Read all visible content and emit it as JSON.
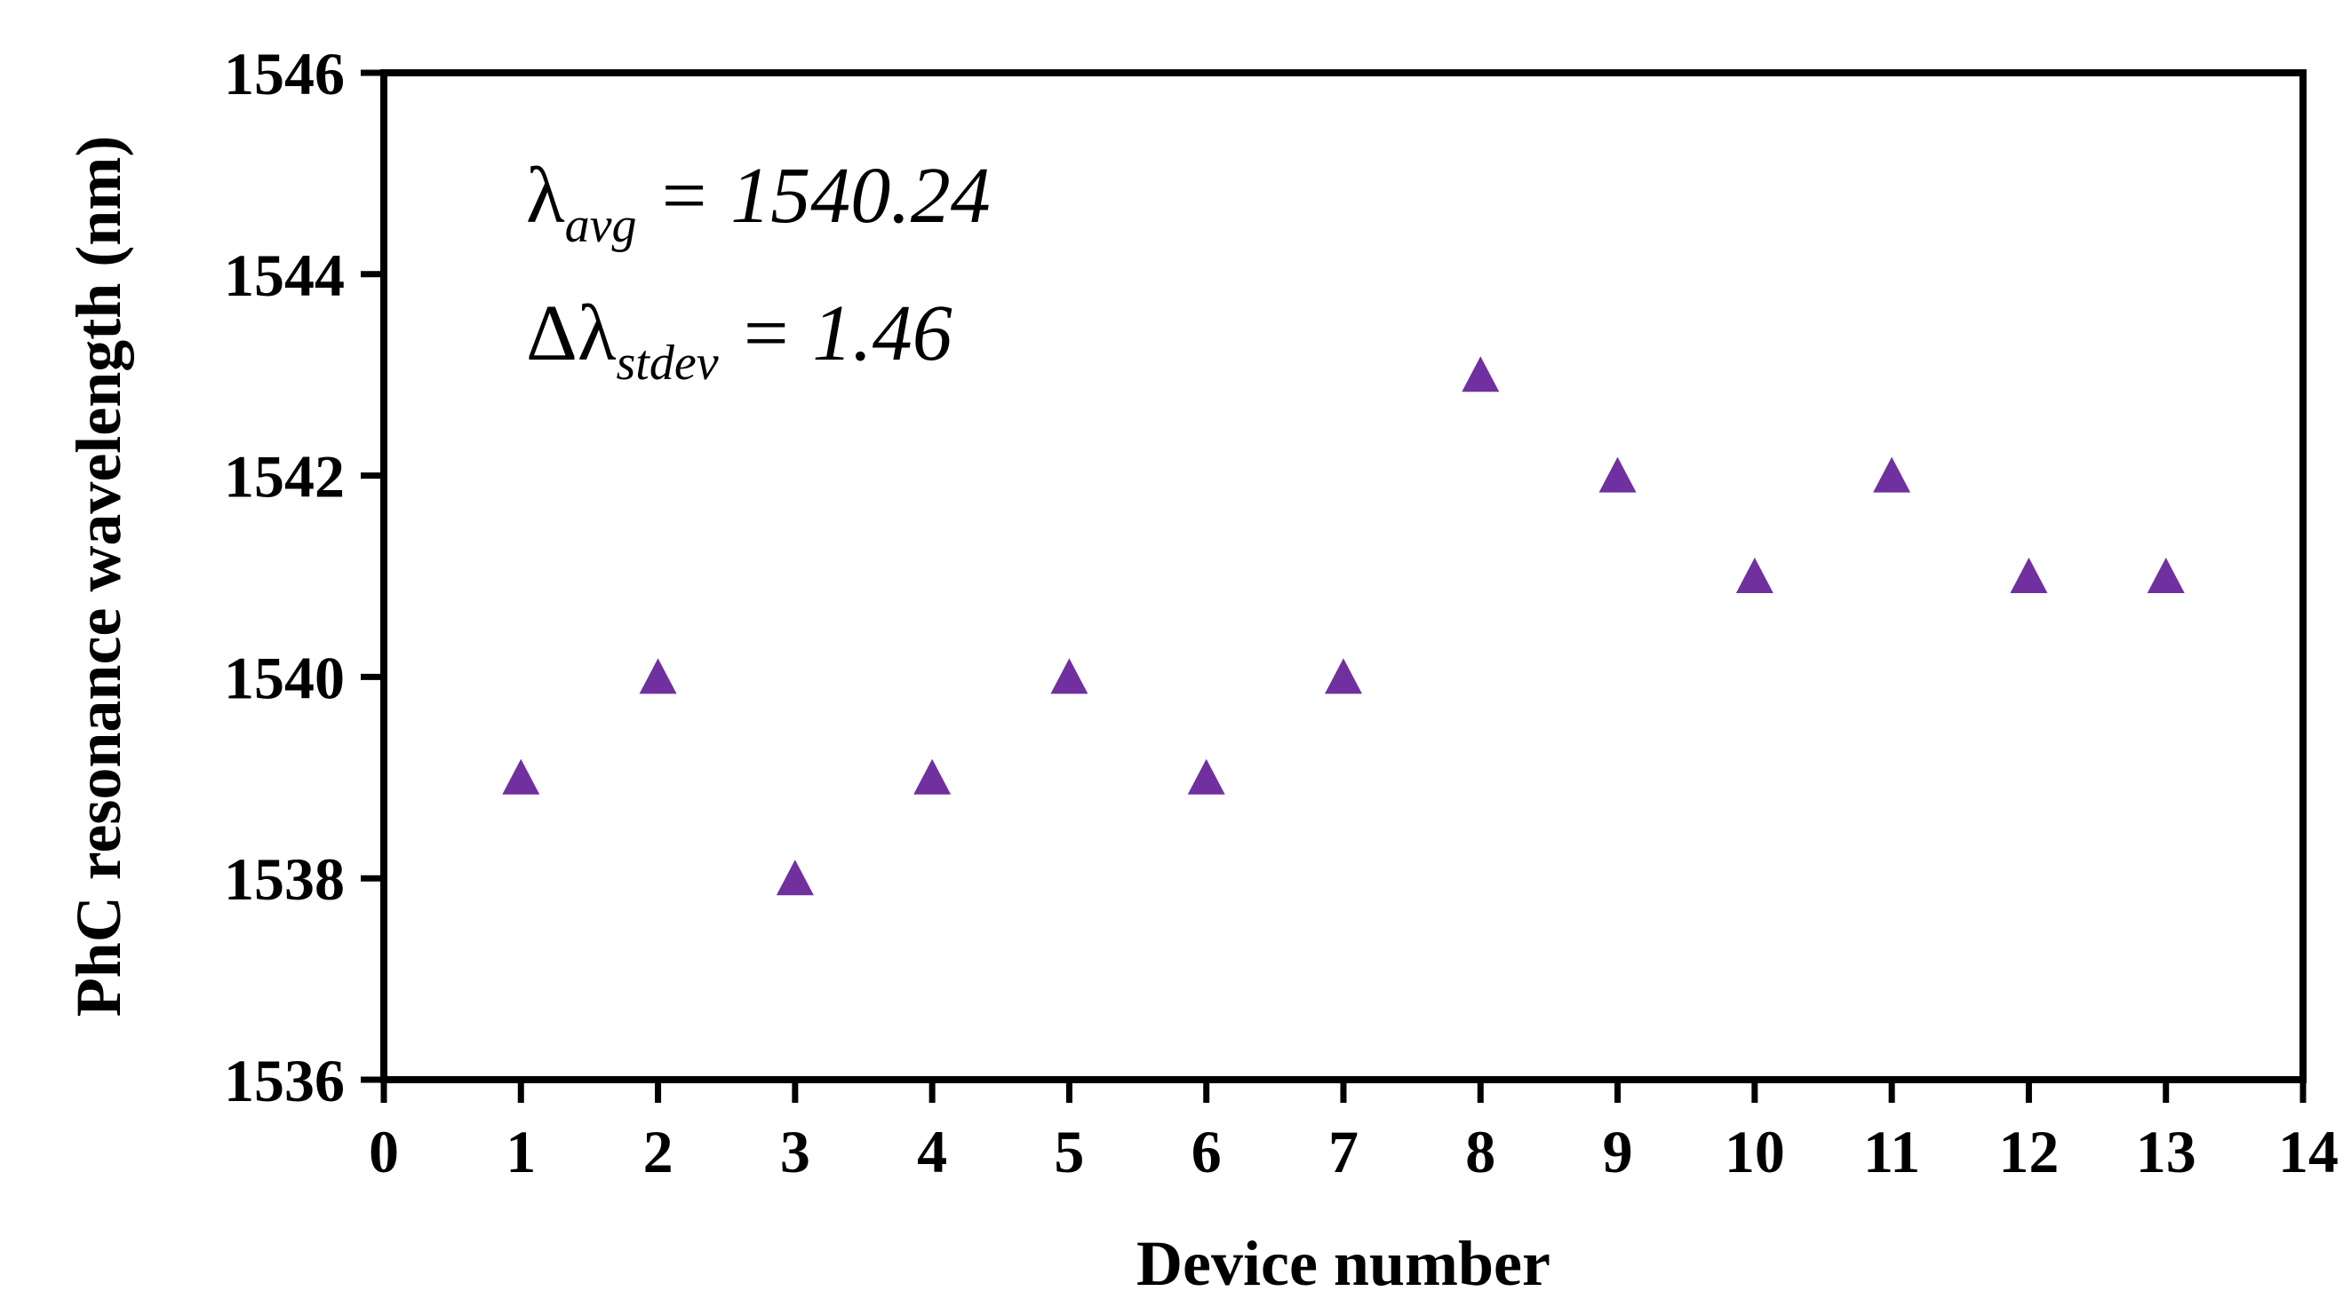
{
  "chart_data": {
    "type": "scatter",
    "xlabel": "Device number",
    "ylabel": "PhC resonance wavelength (nm)",
    "xlim": [
      0,
      14
    ],
    "ylim": [
      1536,
      1546
    ],
    "x_ticks": [
      0,
      1,
      2,
      3,
      4,
      5,
      6,
      7,
      8,
      9,
      10,
      11,
      12,
      13,
      14
    ],
    "y_ticks": [
      1536,
      1538,
      1540,
      1542,
      1544,
      1546
    ],
    "grid": false,
    "legend": "none",
    "marker": "triangle",
    "marker_color": "#7030A0",
    "series": [
      {
        "x": [
          1,
          2,
          3,
          4,
          5,
          6,
          7,
          8,
          9,
          10,
          11,
          12,
          13
        ],
        "y": [
          1539,
          1540,
          1538,
          1539,
          1540,
          1539,
          1540,
          1543,
          1542,
          1541,
          1542,
          1541,
          1541
        ]
      }
    ],
    "annotations": {
      "avg": {
        "symbol": "λ",
        "subscript": "avg",
        "rest": " = 1540.24"
      },
      "stdev": {
        "symbol": "Δλ",
        "subscript": "stdev",
        "rest": " = 1.46"
      }
    }
  }
}
